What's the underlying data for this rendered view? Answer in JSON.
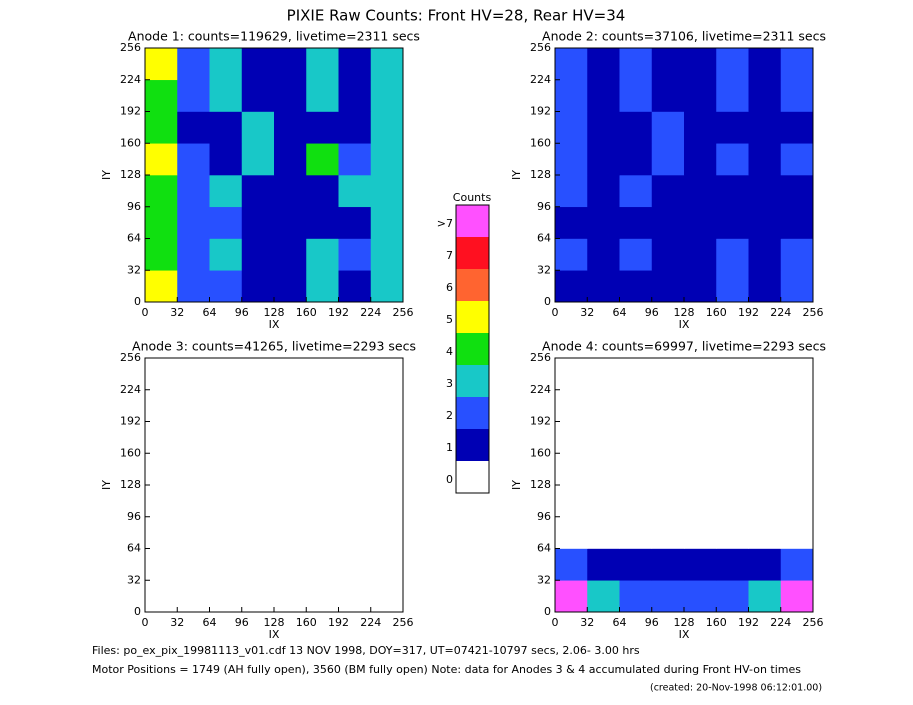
{
  "title": "PIXIE Raw Counts:  Front HV=28, Rear HV=34",
  "colorbar": {
    "title": "Counts",
    "levels": [
      0,
      1,
      2,
      3,
      4,
      5,
      6,
      7,
      {
        "value": 8,
        "label": ">7"
      }
    ],
    "colors": [
      "#ffffff",
      "#0000b4",
      "#2850ff",
      "#18c8c8",
      "#10e010",
      "#ffff00",
      "#ff6430",
      "#ff1020",
      "#ff50ff"
    ]
  },
  "footer": [
    "Files: po_ex_pix_19981113_v01.cdf    13 NOV 1998, DOY=317, UT=07421-10797 secs,  2.06- 3.00 hrs",
    "Motor Positions = 1749 (AH fully open), 3560 (BM fully open)    Note: data for Anodes 3 & 4 accumulated during Front HV-on times",
    "(created: 20-Nov-1998 06:12:01.00)"
  ],
  "chart_data": [
    {
      "type": "heatmap",
      "title": "Anode 1: counts=119629, livetime=2311 secs",
      "xlabel": "IX",
      "ylabel": "IY",
      "xlim": [
        0,
        256
      ],
      "ylim": [
        0,
        256
      ],
      "xticks": [
        0,
        32,
        64,
        96,
        128,
        160,
        192,
        224,
        256
      ],
      "yticks": [
        0,
        32,
        64,
        96,
        128,
        160,
        192,
        224,
        256
      ],
      "z": [
        [
          5,
          2,
          2,
          1,
          1,
          3,
          1,
          3
        ],
        [
          4,
          2,
          3,
          1,
          1,
          3,
          2,
          3
        ],
        [
          4,
          2,
          2,
          1,
          1,
          1,
          1,
          3
        ],
        [
          4,
          2,
          3,
          1,
          1,
          1,
          3,
          3
        ],
        [
          5,
          2,
          1,
          3,
          1,
          4,
          2,
          3
        ],
        [
          4,
          1,
          1,
          3,
          1,
          1,
          1,
          3
        ],
        [
          4,
          2,
          3,
          1,
          1,
          3,
          1,
          3
        ],
        [
          5,
          2,
          3,
          1,
          1,
          3,
          1,
          3
        ]
      ]
    },
    {
      "type": "heatmap",
      "title": "Anode 2: counts=37106, livetime=2311 secs",
      "xlabel": "IX",
      "ylabel": "IY",
      "xlim": [
        0,
        256
      ],
      "ylim": [
        0,
        256
      ],
      "xticks": [
        0,
        32,
        64,
        96,
        128,
        160,
        192,
        224,
        256
      ],
      "yticks": [
        0,
        32,
        64,
        96,
        128,
        160,
        192,
        224,
        256
      ],
      "z": [
        [
          1,
          1,
          1,
          1,
          1,
          2,
          1,
          2
        ],
        [
          2,
          1,
          2,
          1,
          1,
          2,
          1,
          2
        ],
        [
          1,
          1,
          1,
          1,
          1,
          1,
          1,
          1
        ],
        [
          2,
          1,
          2,
          1,
          1,
          1,
          1,
          1
        ],
        [
          2,
          1,
          1,
          2,
          1,
          2,
          1,
          2
        ],
        [
          2,
          1,
          1,
          2,
          1,
          1,
          1,
          1
        ],
        [
          2,
          1,
          2,
          1,
          1,
          2,
          1,
          2
        ],
        [
          2,
          1,
          2,
          1,
          1,
          2,
          1,
          2
        ]
      ]
    },
    {
      "type": "heatmap",
      "title": "Anode 3: counts=41265, livetime=2293 secs",
      "xlabel": "IX",
      "ylabel": "IY",
      "xlim": [
        0,
        256
      ],
      "ylim": [
        0,
        256
      ],
      "xticks": [
        0,
        32,
        64,
        96,
        128,
        160,
        192,
        224,
        256
      ],
      "yticks": [
        0,
        32,
        64,
        96,
        128,
        160,
        192,
        224,
        256
      ],
      "z": [
        [
          0,
          0,
          0,
          0,
          0,
          0,
          0,
          0
        ],
        [
          0,
          0,
          0,
          0,
          0,
          0,
          0,
          0
        ],
        [
          0,
          0,
          0,
          0,
          0,
          0,
          0,
          0
        ],
        [
          0,
          0,
          0,
          0,
          0,
          0,
          0,
          0
        ],
        [
          0,
          0,
          0,
          0,
          0,
          0,
          0,
          0
        ],
        [
          0,
          0,
          0,
          0,
          0,
          0,
          0,
          0
        ],
        [
          0,
          0,
          0,
          0,
          0,
          0,
          0,
          0
        ],
        [
          0,
          0,
          0,
          0,
          0,
          0,
          0,
          0
        ]
      ]
    },
    {
      "type": "heatmap",
      "title": "Anode 4: counts=69997, livetime=2293 secs",
      "xlabel": "IX",
      "ylabel": "IY",
      "xlim": [
        0,
        256
      ],
      "ylim": [
        0,
        256
      ],
      "xticks": [
        0,
        32,
        64,
        96,
        128,
        160,
        192,
        224,
        256
      ],
      "yticks": [
        0,
        32,
        64,
        96,
        128,
        160,
        192,
        224,
        256
      ],
      "z": [
        [
          8,
          3,
          2,
          2,
          2,
          2,
          3,
          8
        ],
        [
          2,
          1,
          1,
          1,
          1,
          1,
          1,
          2
        ],
        [
          0,
          0,
          0,
          0,
          0,
          0,
          0,
          0
        ],
        [
          0,
          0,
          0,
          0,
          0,
          0,
          0,
          0
        ],
        [
          0,
          0,
          0,
          0,
          0,
          0,
          0,
          0
        ],
        [
          0,
          0,
          0,
          0,
          0,
          0,
          0,
          0
        ],
        [
          0,
          0,
          0,
          0,
          0,
          0,
          0,
          0
        ],
        [
          0,
          0,
          0,
          0,
          0,
          0,
          0,
          0
        ]
      ]
    }
  ]
}
